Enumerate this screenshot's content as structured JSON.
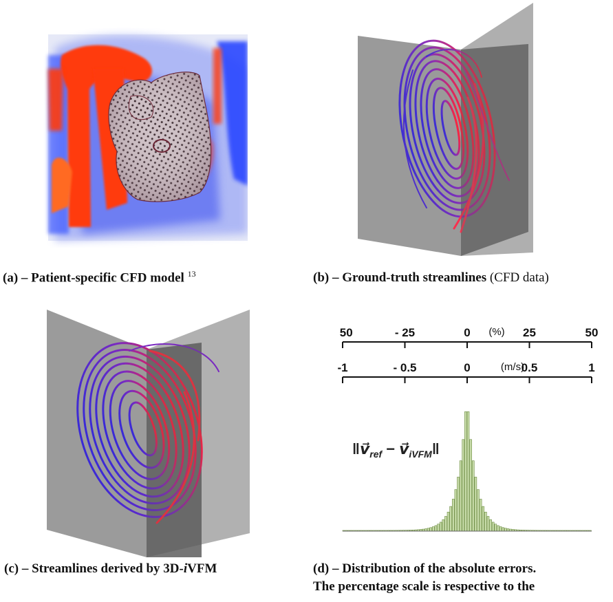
{
  "panels": {
    "a": {
      "caption_prefix": "(a) – Patient-specific CFD model",
      "caption_ref": "13"
    },
    "b": {
      "caption_bold": "(b) – Ground-truth streamlines",
      "caption_normal": "(CFD data)"
    },
    "c": {
      "caption_prefix": "(c) – Streamlines derived by 3D-",
      "caption_italic": "i",
      "caption_suffix": "VFM"
    },
    "d": {
      "caption_line1": "(d) – Distribution of the absolute errors.",
      "caption_line2": "The percentage scale is respective to the"
    }
  },
  "chart_data": {
    "type": "bar",
    "formula": "‖v⃗ref − v⃗iVFM‖",
    "formula_parts": {
      "open": "‖",
      "v1": "v⃗",
      "sub1": "ref",
      "minus": "−",
      "v2": "v⃗",
      "sub2": "iVFM",
      "close": "‖"
    },
    "axes": [
      {
        "unit": "(%)",
        "ticks": [
          "- 50",
          "- 25",
          "0",
          "25",
          "50"
        ],
        "range": [
          -50,
          50
        ]
      },
      {
        "unit": "(m/s)",
        "ticks": [
          "-1",
          "- 0.5",
          "0",
          "0.5",
          "1"
        ],
        "range": [
          -1,
          1
        ]
      }
    ],
    "x_range": [
      -1,
      1
    ],
    "bar_width": 0.02,
    "peak": 1.0,
    "decay": 0.075,
    "bar_color": "#c8dcaa",
    "bar_edge": "#6a8a3f"
  },
  "colors": {
    "red": "#ff3a10",
    "blue": "#2a46ff",
    "plane": "#8c8c8c",
    "plane_dark": "#5a5a5a"
  }
}
